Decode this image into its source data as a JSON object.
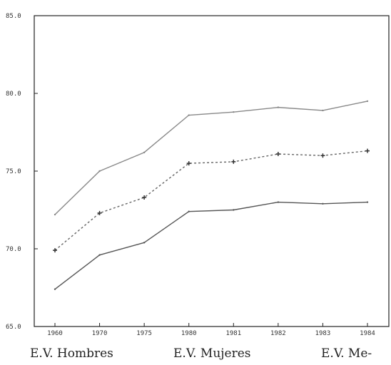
{
  "chart_data": {
    "type": "line",
    "x_categories": [
      "1960",
      "1970",
      "1975",
      "1980",
      "1981",
      "1982",
      "1983",
      "1984"
    ],
    "y_ticks": [
      "65.0",
      "70.0",
      "75.0",
      "80.0",
      "85.0"
    ],
    "ylim": [
      65,
      85
    ],
    "grid": false,
    "legend_position": "bottom",
    "series": [
      {
        "name": "E.V. Hombres",
        "color": "#555555",
        "marker": "none",
        "dash": "solid",
        "values": [
          67.4,
          69.6,
          70.4,
          72.4,
          72.5,
          73.0,
          72.9,
          73.0
        ]
      },
      {
        "name": "E.V. Mujeres",
        "color": "#888888",
        "marker": "none",
        "dash": "solid",
        "values": [
          72.2,
          75.0,
          76.2,
          78.6,
          78.8,
          79.1,
          78.9,
          79.5
        ]
      },
      {
        "name": "E.V. Me-",
        "color": "#666666",
        "marker": "plus",
        "dash": "dotted",
        "values": [
          69.9,
          72.3,
          73.3,
          75.5,
          75.6,
          76.1,
          76.0,
          76.3
        ]
      }
    ]
  }
}
